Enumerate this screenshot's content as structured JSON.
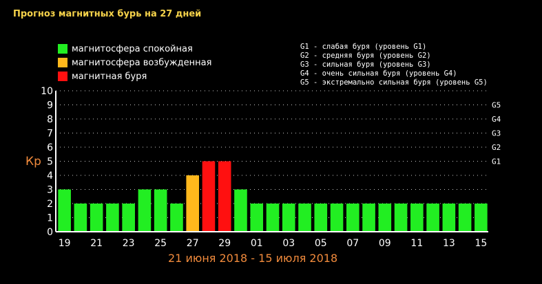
{
  "title": "Прогноз магнитных бурь на 27 дней",
  "legend": [
    {
      "label": "магнитосфера спокойная",
      "color": "#22ee22"
    },
    {
      "label": "магнитосфера возбужденная",
      "color": "#ffb81c"
    },
    {
      "label": "магнитная буря",
      "color": "#ff1010"
    }
  ],
  "g_levels": [
    "G1 - слабая буря (уровень G1)",
    "G2 - средняя буря (уровень G2)",
    "G3 - сильная буря (уровень G3)",
    "G4 - очень сильная буря (уровень G4)",
    "G5 - экстремально сильная буря (уровень G5)"
  ],
  "ylabel": "Кр",
  "date_range": "21 июня 2018 - 15 июля 2018",
  "colors": {
    "quiet": "#22ee22",
    "active": "#ffb81c",
    "storm": "#ff1010",
    "axis": "#ffffff",
    "grid": "#ffffff"
  },
  "chart_data": {
    "type": "bar",
    "ylim": [
      0,
      10
    ],
    "yticks": [
      "0",
      "1",
      "2",
      "3",
      "4",
      "5",
      "6",
      "7",
      "8",
      "9",
      "10"
    ],
    "right_ticks": [
      {
        "y": 5,
        "label": "G1"
      },
      {
        "y": 6,
        "label": "G2"
      },
      {
        "y": 7,
        "label": "G3"
      },
      {
        "y": 8,
        "label": "G4"
      },
      {
        "y": 9,
        "label": "G5"
      }
    ],
    "grid": true,
    "xtick_labels": [
      "19",
      "21",
      "23",
      "25",
      "27",
      "29",
      "01",
      "03",
      "05",
      "07",
      "09",
      "11",
      "13",
      "15"
    ],
    "values": [
      3,
      2,
      2,
      2,
      2,
      3,
      3,
      2,
      4,
      5,
      5,
      3,
      2,
      2,
      2,
      2,
      2,
      2,
      2,
      2,
      2,
      2,
      2,
      2,
      2,
      2,
      2
    ],
    "levels": [
      "quiet",
      "quiet",
      "quiet",
      "quiet",
      "quiet",
      "quiet",
      "quiet",
      "quiet",
      "active",
      "storm",
      "storm",
      "quiet",
      "quiet",
      "quiet",
      "quiet",
      "quiet",
      "quiet",
      "quiet",
      "quiet",
      "quiet",
      "quiet",
      "quiet",
      "quiet",
      "quiet",
      "quiet",
      "quiet",
      "quiet"
    ]
  }
}
